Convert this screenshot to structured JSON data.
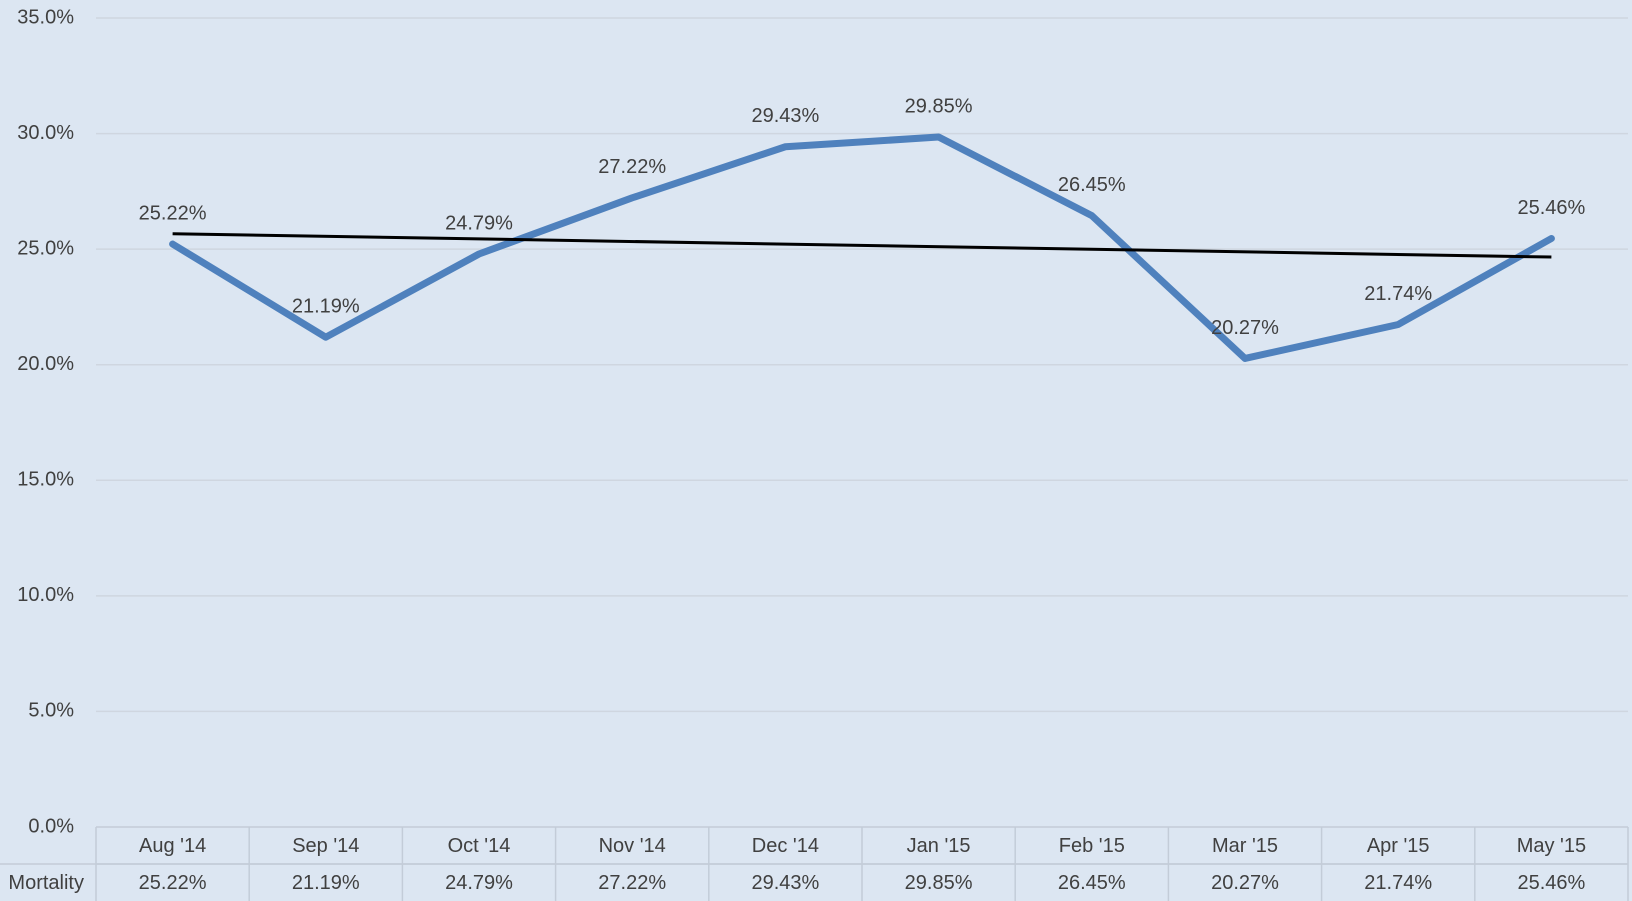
{
  "chart_data": {
    "type": "line",
    "categories": [
      "Aug '14",
      "Sep '14",
      "Oct '14",
      "Nov '14",
      "Dec '14",
      "Jan '15",
      "Feb '15",
      "Mar '15",
      "Apr '15",
      "May '15"
    ],
    "series": [
      {
        "name": "Mortality",
        "color": "#4f81bd",
        "values": [
          25.22,
          21.19,
          24.79,
          27.22,
          29.43,
          29.85,
          26.45,
          20.27,
          21.74,
          25.46
        ],
        "value_labels": [
          "25.22%",
          "21.19%",
          "24.79%",
          "27.22%",
          "29.43%",
          "29.85%",
          "26.45%",
          "20.27%",
          "21.74%",
          "25.46%"
        ]
      }
    ],
    "ylim": [
      0,
      35
    ],
    "yticks": [
      {
        "value": 0,
        "label": "0.0%"
      },
      {
        "value": 5,
        "label": "5.0%"
      },
      {
        "value": 10,
        "label": "10.0%"
      },
      {
        "value": 15,
        "label": "15.0%"
      },
      {
        "value": 20,
        "label": "20.0%"
      },
      {
        "value": 25,
        "label": "25.0%"
      },
      {
        "value": 30,
        "label": "30.0%"
      },
      {
        "value": 35,
        "label": "35.0%"
      }
    ],
    "grid": true,
    "trendline": true,
    "trendline_color": "#000000",
    "data_table": true
  }
}
